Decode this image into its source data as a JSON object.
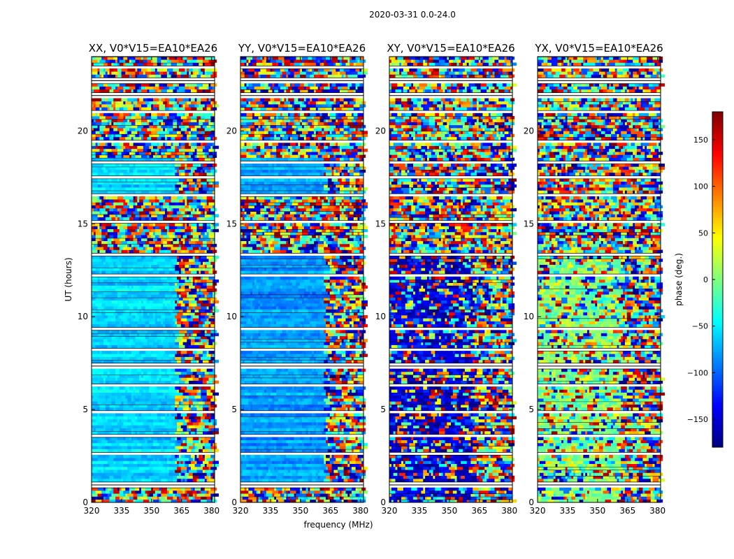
{
  "chart_data": {
    "type": "heatmap",
    "suptitle": "2020-03-31 0.0-24.0",
    "xlabel": "frequency (MHz)",
    "ylabel": "UT (hours)",
    "xlim": [
      320,
      381.5
    ],
    "ylim": [
      0,
      24
    ],
    "xticks": [
      320,
      335,
      350,
      365,
      380
    ],
    "yticks": [
      0,
      5,
      10,
      15,
      20
    ],
    "colorbar": {
      "label": "phase (deg.)",
      "range": [
        -180,
        180
      ],
      "ticks": [
        -150,
        -100,
        -50,
        0,
        50,
        100,
        150
      ],
      "tick_labels": [
        "−150",
        "−100",
        "−50",
        "0",
        "50",
        "100",
        "150"
      ],
      "colormap": "jet"
    },
    "panels": [
      {
        "title": "XX, V0*V15=EA10*EA26",
        "pol": "XX",
        "base_phase": -60,
        "edge_freq": 361
      },
      {
        "title": "YY, V0*V15=EA10*EA26",
        "pol": "YY",
        "base_phase": -80,
        "edge_freq": 361
      },
      {
        "title": "XY, V0*V15=EA10*EA26",
        "pol": "XY",
        "base_phase": -150,
        "edge_freq": 361
      },
      {
        "title": "YX, V0*V15=EA10*EA26",
        "pol": "YX",
        "base_phase": 0,
        "edge_freq": 361
      }
    ],
    "flagged_hours": [
      [
        0.8,
        1.15
      ],
      [
        2.55,
        2.7
      ],
      [
        3.45,
        3.6
      ],
      [
        4.85,
        4.95
      ],
      [
        6.25,
        6.4
      ],
      [
        7.25,
        7.45
      ],
      [
        8.2,
        8.3
      ],
      [
        9.3,
        9.45
      ],
      [
        10.85,
        10.95
      ],
      [
        12.2,
        12.3
      ],
      [
        13.3,
        13.5
      ],
      [
        14.5,
        14.6
      ],
      [
        15.1,
        15.2
      ],
      [
        16.5,
        16.7
      ],
      [
        17.5,
        17.6
      ],
      [
        18.2,
        18.4
      ],
      [
        19.3,
        19.55
      ],
      [
        20.95,
        21.1
      ],
      [
        21.7,
        22.0
      ],
      [
        22.5,
        22.8
      ],
      [
        23.3,
        23.45
      ]
    ]
  }
}
